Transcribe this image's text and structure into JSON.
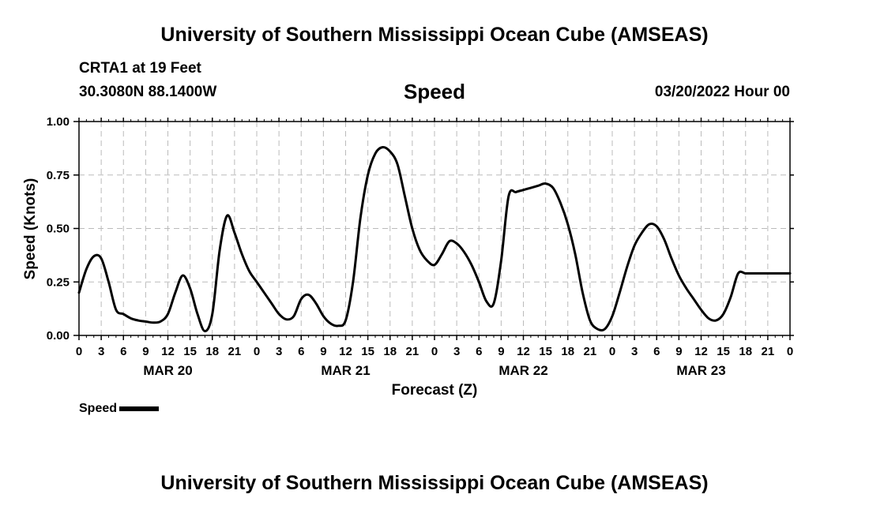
{
  "header": {
    "title": "University of Southern Mississippi Ocean Cube (AMSEAS)",
    "station": "CRTA1 at 19 Feet",
    "coordinates": "30.3080N  88.1400W",
    "variable": "Speed",
    "date": "03/20/2022 Hour 00"
  },
  "footer": {
    "title": "University of Southern Mississippi Ocean Cube (AMSEAS)"
  },
  "legend": {
    "label": "Speed",
    "color": "#000000"
  },
  "chart_data": {
    "type": "line",
    "title": "Speed",
    "xlabel": "Forecast (Z)",
    "ylabel": "Speed (Knots)",
    "xlim": [
      0,
      96
    ],
    "ylim": [
      0,
      1.0
    ],
    "grid": true,
    "legend_position": "bottom-left",
    "yticks": [
      0.0,
      0.25,
      0.5,
      0.75,
      1.0
    ],
    "ytick_labels": [
      "0.00",
      "0.25",
      "0.50",
      "0.75",
      "1.00"
    ],
    "xticks": [
      0,
      3,
      6,
      9,
      12,
      15,
      18,
      21,
      24,
      27,
      30,
      33,
      36,
      39,
      42,
      45,
      48,
      51,
      54,
      57,
      60,
      63,
      66,
      69,
      72,
      75,
      78,
      81,
      84,
      87,
      90,
      93,
      96
    ],
    "xtick_labels": [
      "0",
      "3",
      "6",
      "9",
      "12",
      "15",
      "18",
      "21",
      "0",
      "3",
      "6",
      "9",
      "12",
      "15",
      "18",
      "21",
      "0",
      "3",
      "6",
      "9",
      "12",
      "15",
      "18",
      "21",
      "0",
      "3",
      "6",
      "9",
      "12",
      "15",
      "18",
      "21",
      "0"
    ],
    "day_labels": [
      {
        "label": "MAR 20",
        "x": 12
      },
      {
        "label": "MAR 21",
        "x": 36
      },
      {
        "label": "MAR 22",
        "x": 60
      },
      {
        "label": "MAR 23",
        "x": 84
      }
    ],
    "series": [
      {
        "name": "Speed",
        "color": "#000000",
        "x": [
          0,
          1,
          2,
          3,
          4,
          5,
          6,
          7,
          8,
          9,
          10,
          11,
          12,
          13,
          14,
          15,
          16,
          17,
          18,
          19,
          20,
          21,
          22,
          23,
          24,
          25,
          26,
          27,
          28,
          29,
          30,
          31,
          32,
          33,
          34,
          35,
          36,
          37,
          38,
          39,
          40,
          41,
          42,
          43,
          44,
          45,
          46,
          47,
          48,
          49,
          50,
          51,
          52,
          53,
          54,
          55,
          56,
          57,
          58,
          59,
          60,
          61,
          62,
          63,
          64,
          65,
          66,
          67,
          68,
          69,
          70,
          71,
          72,
          73,
          74,
          75,
          76,
          77,
          78,
          79,
          80,
          81,
          82,
          83,
          84,
          85,
          86,
          87,
          88,
          89,
          90,
          91,
          92,
          93,
          94,
          95,
          96
        ],
        "values": [
          0.2,
          0.31,
          0.37,
          0.36,
          0.25,
          0.12,
          0.1,
          0.08,
          0.07,
          0.065,
          0.06,
          0.065,
          0.1,
          0.2,
          0.28,
          0.22,
          0.1,
          0.02,
          0.1,
          0.4,
          0.56,
          0.48,
          0.38,
          0.3,
          0.25,
          0.2,
          0.15,
          0.1,
          0.075,
          0.09,
          0.17,
          0.19,
          0.15,
          0.09,
          0.055,
          0.045,
          0.07,
          0.25,
          0.55,
          0.75,
          0.85,
          0.88,
          0.86,
          0.8,
          0.65,
          0.5,
          0.4,
          0.35,
          0.33,
          0.38,
          0.44,
          0.43,
          0.39,
          0.33,
          0.25,
          0.16,
          0.15,
          0.35,
          0.65,
          0.67,
          0.68,
          0.69,
          0.7,
          0.71,
          0.69,
          0.62,
          0.52,
          0.38,
          0.2,
          0.07,
          0.03,
          0.03,
          0.09,
          0.2,
          0.32,
          0.42,
          0.48,
          0.52,
          0.51,
          0.45,
          0.36,
          0.28,
          0.22,
          0.17,
          0.12,
          0.08,
          0.07,
          0.1,
          0.18,
          0.29,
          0.29,
          0.29,
          0.29,
          0.29,
          0.29,
          0.29,
          0.29
        ]
      }
    ]
  }
}
